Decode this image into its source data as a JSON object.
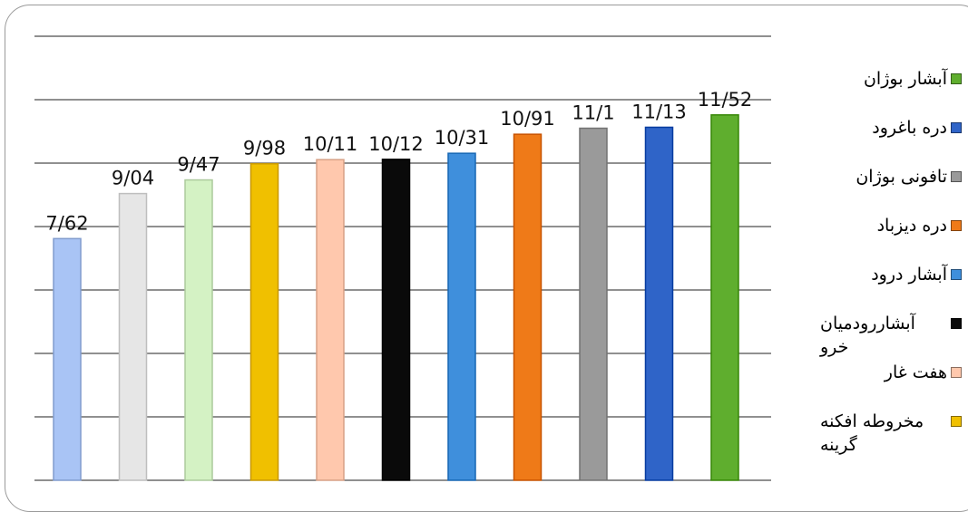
{
  "chart_data": {
    "type": "bar",
    "ylim": [
      0,
      14
    ],
    "grid": true,
    "legend_position": "right",
    "categories": [
      "",
      "",
      "",
      "",
      "",
      "",
      "",
      "",
      "",
      "",
      ""
    ],
    "values": [
      7.62,
      9.04,
      9.47,
      9.98,
      10.11,
      10.12,
      10.31,
      10.91,
      11.1,
      11.13,
      11.52
    ],
    "labels": [
      "7/62",
      "9/04",
      "9/47",
      "9/98",
      "10/11",
      "10/12",
      "10/31",
      "10/91",
      "11/1",
      "11/13",
      "11/52"
    ],
    "colors": [
      "#a9c4f5",
      "#e6e6e6",
      "#d4f2c4",
      "#f0c000",
      "#ffc8ad",
      "#0a0a0a",
      "#3f8fdc",
      "#ef7a18",
      "#9a9a9a",
      "#2f64c8",
      "#5fae2e"
    ],
    "legend": [
      {
        "label": "آبشار بوژان",
        "color": "#5fae2e"
      },
      {
        "label": "دره باغرود",
        "color": "#2f64c8"
      },
      {
        "label": "تافونی بوژان",
        "color": "#9a9a9a"
      },
      {
        "label": "دره دیزباد",
        "color": "#ef7a18"
      },
      {
        "label": "آبشار درود",
        "color": "#3f8fdc"
      },
      {
        "label": "آبشاررودمیان خرو",
        "color": "#0a0a0a"
      },
      {
        "label": "هفت غار",
        "color": "#ffc8ad"
      },
      {
        "label": "مخروطه افکنه گرینه",
        "color": "#f0c000"
      }
    ]
  }
}
